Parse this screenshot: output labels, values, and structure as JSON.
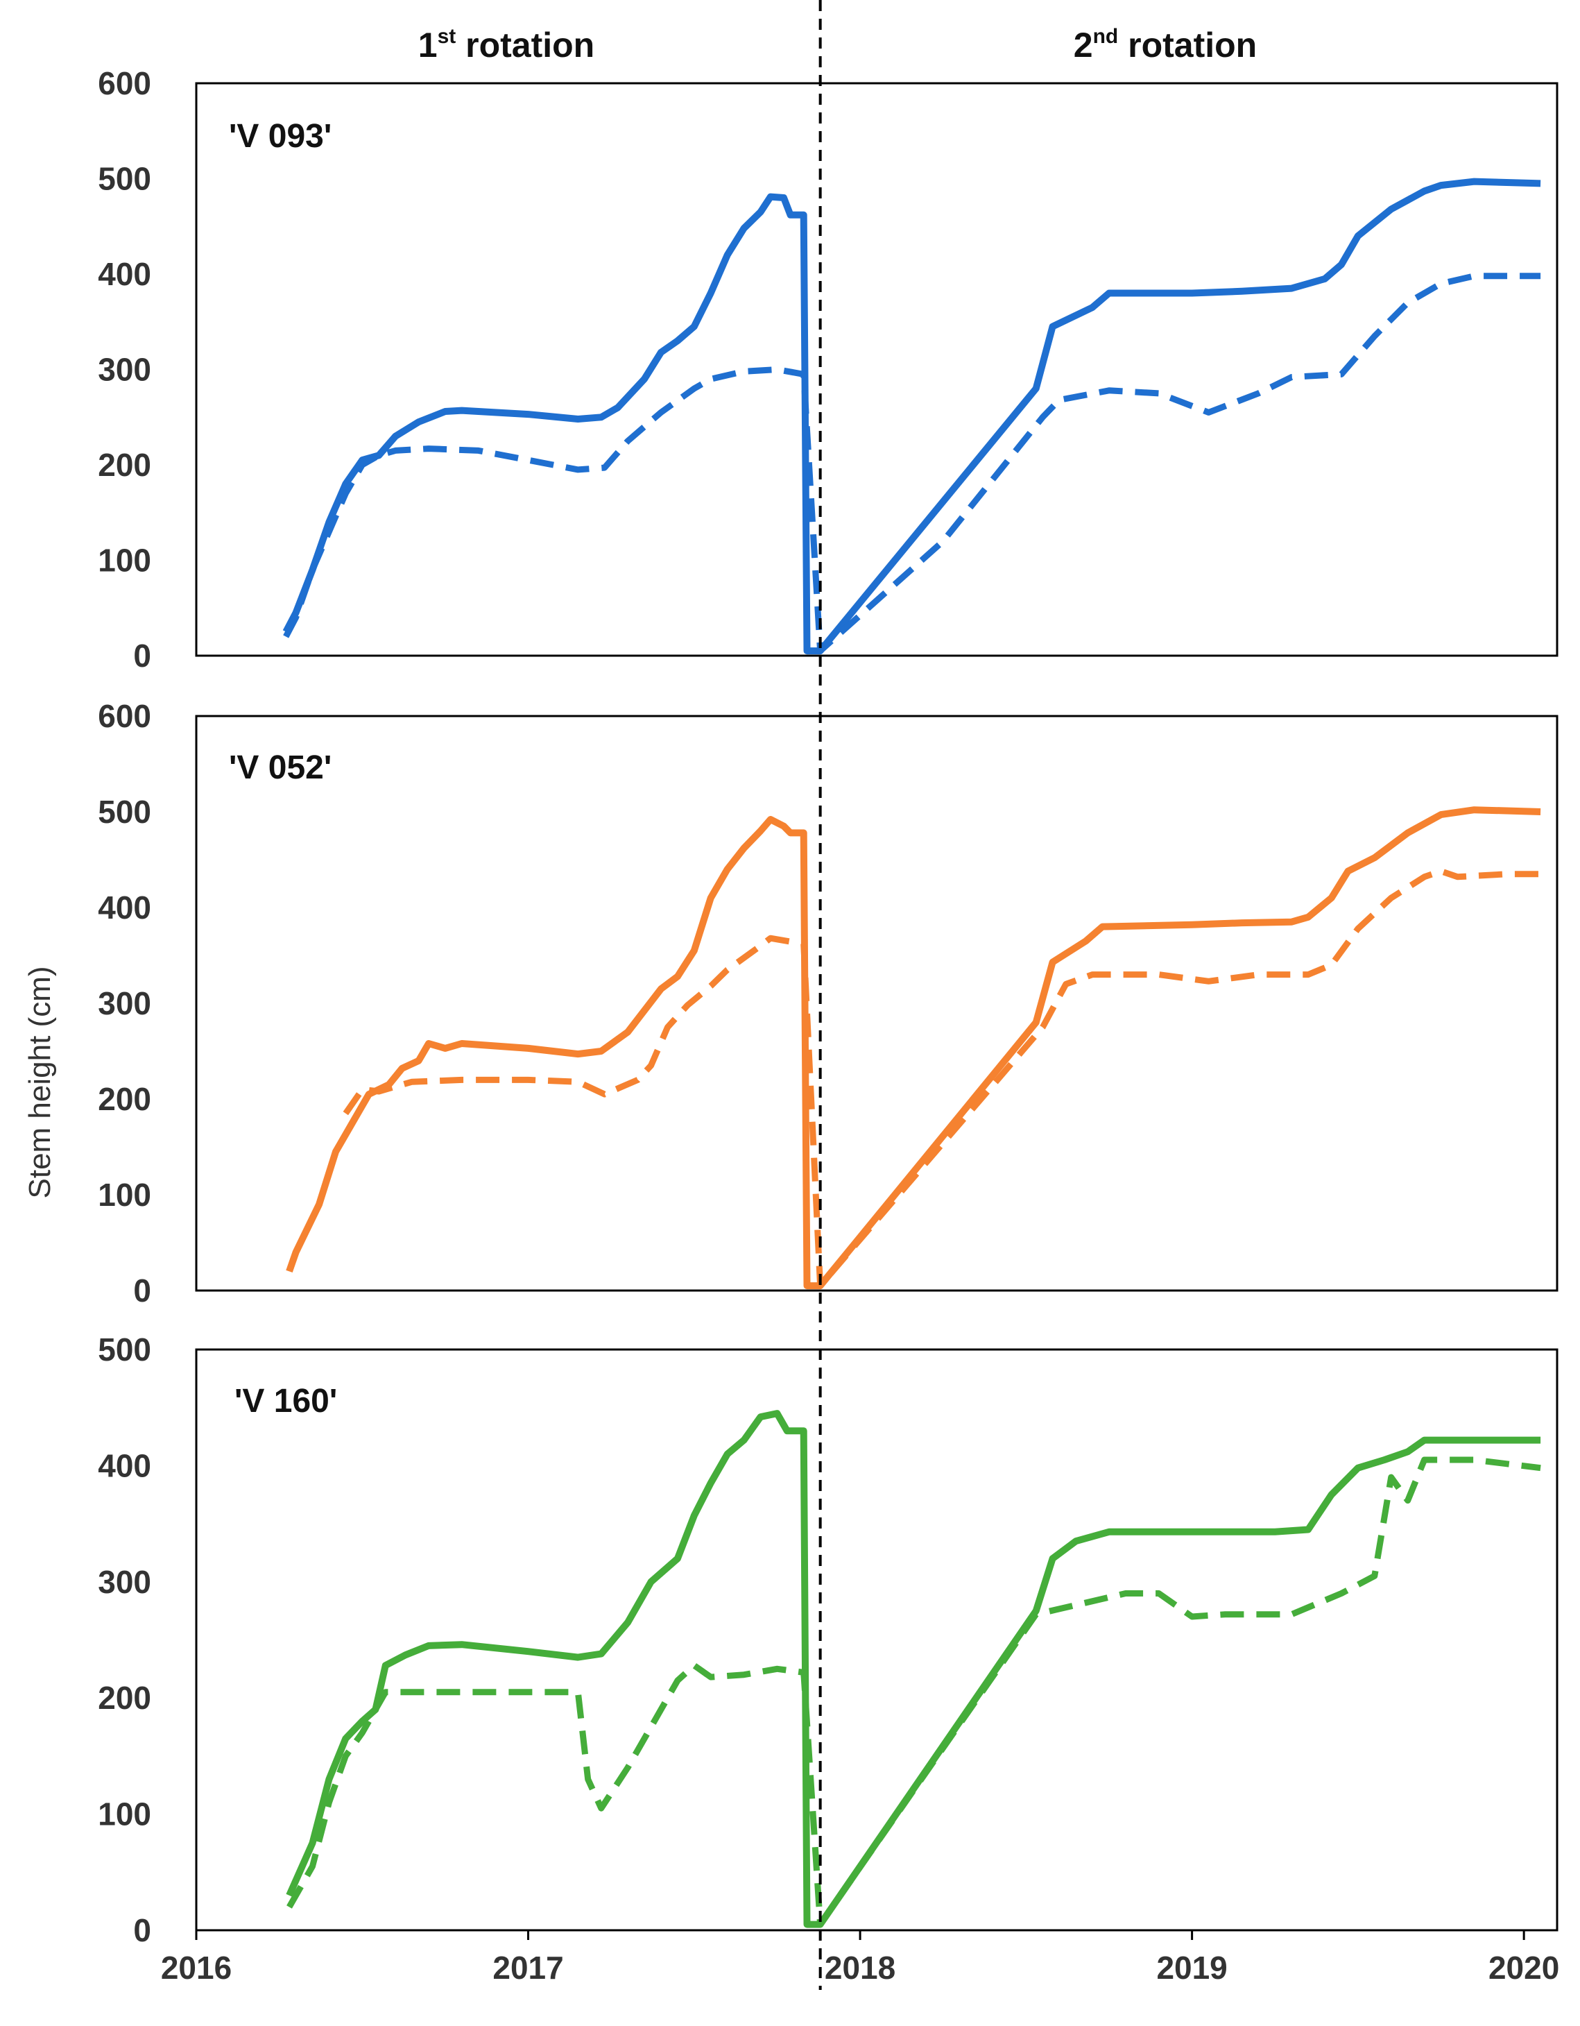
{
  "header": {
    "rotation1": {
      "prefix": "1",
      "sup": "st",
      "suffix": " rotation"
    },
    "rotation2": {
      "prefix": "2",
      "sup": "nd",
      "suffix": " rotation"
    }
  },
  "y_axis_label": "Stem height (cm)",
  "colors": {
    "V 093": "#1f6fd0",
    "V 052": "#f58230",
    "V 160": "#45ad3a",
    "frame": "#000000",
    "divider": "#000000"
  },
  "chart_data": [
    {
      "type": "line",
      "title": "'V 093'",
      "color": "#1f6fd0",
      "xlim": [
        2016,
        2020.1
      ],
      "ylim": [
        0,
        600
      ],
      "yticks": [
        0,
        100,
        200,
        300,
        400,
        500,
        600
      ],
      "series": [
        {
          "name": "solid",
          "style": "solid",
          "points": [
            [
              2016.27,
              25
            ],
            [
              2016.3,
              45
            ],
            [
              2016.35,
              90
            ],
            [
              2016.4,
              140
            ],
            [
              2016.45,
              180
            ],
            [
              2016.5,
              205
            ],
            [
              2016.55,
              210
            ],
            [
              2016.6,
              230
            ],
            [
              2016.67,
              245
            ],
            [
              2016.75,
              256
            ],
            [
              2016.8,
              257
            ],
            [
              2017.0,
              253
            ],
            [
              2017.15,
              248
            ],
            [
              2017.22,
              250
            ],
            [
              2017.27,
              260
            ],
            [
              2017.35,
              290
            ],
            [
              2017.4,
              318
            ],
            [
              2017.45,
              330
            ],
            [
              2017.5,
              345
            ],
            [
              2017.55,
              380
            ],
            [
              2017.6,
              420
            ],
            [
              2017.65,
              448
            ],
            [
              2017.7,
              465
            ],
            [
              2017.73,
              481
            ],
            [
              2017.77,
              480
            ],
            [
              2017.79,
              462
            ],
            [
              2017.83,
              462
            ],
            [
              2017.84,
              5
            ],
            [
              2017.88,
              5
            ],
            [
              2018.53,
              280
            ],
            [
              2018.58,
              345
            ],
            [
              2018.7,
              365
            ],
            [
              2018.75,
              380
            ],
            [
              2019.0,
              380
            ],
            [
              2019.15,
              382
            ],
            [
              2019.3,
              385
            ],
            [
              2019.4,
              395
            ],
            [
              2019.45,
              410
            ],
            [
              2019.5,
              440
            ],
            [
              2019.6,
              468
            ],
            [
              2019.7,
              487
            ],
            [
              2019.75,
              493
            ],
            [
              2019.85,
              497
            ],
            [
              2020.05,
              495
            ]
          ]
        },
        {
          "name": "dashed",
          "style": "dashed",
          "points": [
            [
              2016.27,
              20
            ],
            [
              2016.3,
              40
            ],
            [
              2016.35,
              90
            ],
            [
              2016.4,
              130
            ],
            [
              2016.45,
              170
            ],
            [
              2016.5,
              200
            ],
            [
              2016.55,
              210
            ],
            [
              2016.6,
              215
            ],
            [
              2016.7,
              217
            ],
            [
              2016.85,
              215
            ],
            [
              2017.0,
              205
            ],
            [
              2017.15,
              195
            ],
            [
              2017.23,
              197
            ],
            [
              2017.3,
              225
            ],
            [
              2017.4,
              255
            ],
            [
              2017.5,
              280
            ],
            [
              2017.55,
              290
            ],
            [
              2017.65,
              298
            ],
            [
              2017.75,
              300
            ],
            [
              2017.83,
              295
            ],
            [
              2017.88,
              5
            ],
            [
              2018.25,
              120
            ],
            [
              2018.55,
              250
            ],
            [
              2018.6,
              268
            ],
            [
              2018.75,
              278
            ],
            [
              2018.9,
              275
            ],
            [
              2019.05,
              255
            ],
            [
              2019.2,
              275
            ],
            [
              2019.3,
              292
            ],
            [
              2019.45,
              295
            ],
            [
              2019.55,
              335
            ],
            [
              2019.65,
              370
            ],
            [
              2019.75,
              390
            ],
            [
              2019.85,
              398
            ],
            [
              2020.05,
              398
            ]
          ]
        }
      ]
    },
    {
      "type": "line",
      "title": "'V 052'",
      "color": "#f58230",
      "xlim": [
        2016,
        2020.1
      ],
      "ylim": [
        0,
        600
      ],
      "yticks": [
        0,
        100,
        200,
        300,
        400,
        500,
        600
      ],
      "series": [
        {
          "name": "solid",
          "style": "solid",
          "points": [
            [
              2016.28,
              20
            ],
            [
              2016.3,
              40
            ],
            [
              2016.37,
              90
            ],
            [
              2016.42,
              145
            ],
            [
              2016.47,
              175
            ],
            [
              2016.52,
              205
            ],
            [
              2016.58,
              215
            ],
            [
              2016.62,
              232
            ],
            [
              2016.67,
              240
            ],
            [
              2016.7,
              258
            ],
            [
              2016.75,
              253
            ],
            [
              2016.8,
              258
            ],
            [
              2017.0,
              253
            ],
            [
              2017.15,
              247
            ],
            [
              2017.22,
              250
            ],
            [
              2017.3,
              270
            ],
            [
              2017.4,
              315
            ],
            [
              2017.45,
              328
            ],
            [
              2017.5,
              355
            ],
            [
              2017.55,
              410
            ],
            [
              2017.6,
              440
            ],
            [
              2017.65,
              462
            ],
            [
              2017.7,
              480
            ],
            [
              2017.73,
              492
            ],
            [
              2017.77,
              485
            ],
            [
              2017.79,
              478
            ],
            [
              2017.83,
              478
            ],
            [
              2017.84,
              5
            ],
            [
              2017.88,
              5
            ],
            [
              2018.53,
              280
            ],
            [
              2018.58,
              343
            ],
            [
              2018.68,
              365
            ],
            [
              2018.73,
              380
            ],
            [
              2019.0,
              382
            ],
            [
              2019.15,
              384
            ],
            [
              2019.3,
              385
            ],
            [
              2019.35,
              390
            ],
            [
              2019.42,
              410
            ],
            [
              2019.47,
              438
            ],
            [
              2019.55,
              452
            ],
            [
              2019.65,
              478
            ],
            [
              2019.75,
              497
            ],
            [
              2019.85,
              502
            ],
            [
              2020.05,
              500
            ]
          ]
        },
        {
          "name": "dashed",
          "style": "dashed",
          "points": [
            [
              2016.45,
              185
            ],
            [
              2016.5,
              210
            ],
            [
              2016.55,
              208
            ],
            [
              2016.65,
              218
            ],
            [
              2016.8,
              220
            ],
            [
              2017.0,
              220
            ],
            [
              2017.15,
              218
            ],
            [
              2017.23,
              205
            ],
            [
              2017.33,
              220
            ],
            [
              2017.37,
              235
            ],
            [
              2017.42,
              275
            ],
            [
              2017.48,
              298
            ],
            [
              2017.55,
              318
            ],
            [
              2017.6,
              335
            ],
            [
              2017.7,
              360
            ],
            [
              2017.73,
              368
            ],
            [
              2017.83,
              362
            ],
            [
              2017.88,
              5
            ],
            [
              2018.55,
              275
            ],
            [
              2018.62,
              320
            ],
            [
              2018.7,
              330
            ],
            [
              2018.9,
              330
            ],
            [
              2019.05,
              323
            ],
            [
              2019.2,
              330
            ],
            [
              2019.35,
              330
            ],
            [
              2019.42,
              340
            ],
            [
              2019.5,
              378
            ],
            [
              2019.6,
              410
            ],
            [
              2019.7,
              432
            ],
            [
              2019.75,
              438
            ],
            [
              2019.8,
              432
            ],
            [
              2019.95,
              435
            ],
            [
              2020.05,
              435
            ]
          ]
        }
      ]
    },
    {
      "type": "line",
      "title": "'V 160'",
      "color": "#45ad3a",
      "xlim": [
        2016,
        2020.1
      ],
      "ylim": [
        0,
        500
      ],
      "yticks": [
        0,
        100,
        200,
        300,
        400,
        500
      ],
      "series": [
        {
          "name": "solid",
          "style": "solid",
          "points": [
            [
              2016.28,
              30
            ],
            [
              2016.35,
              75
            ],
            [
              2016.4,
              130
            ],
            [
              2016.45,
              165
            ],
            [
              2016.5,
              180
            ],
            [
              2016.54,
              190
            ],
            [
              2016.57,
              228
            ],
            [
              2016.63,
              237
            ],
            [
              2016.7,
              245
            ],
            [
              2016.8,
              246
            ],
            [
              2017.0,
              240
            ],
            [
              2017.15,
              235
            ],
            [
              2017.22,
              238
            ],
            [
              2017.3,
              265
            ],
            [
              2017.37,
              300
            ],
            [
              2017.45,
              320
            ],
            [
              2017.5,
              357
            ],
            [
              2017.55,
              385
            ],
            [
              2017.6,
              410
            ],
            [
              2017.65,
              422
            ],
            [
              2017.7,
              442
            ],
            [
              2017.75,
              445
            ],
            [
              2017.78,
              430
            ],
            [
              2017.83,
              430
            ],
            [
              2017.84,
              5
            ],
            [
              2017.88,
              5
            ],
            [
              2018.53,
              275
            ],
            [
              2018.58,
              320
            ],
            [
              2018.65,
              335
            ],
            [
              2018.75,
              343
            ],
            [
              2019.0,
              343
            ],
            [
              2019.25,
              343
            ],
            [
              2019.35,
              345
            ],
            [
              2019.42,
              375
            ],
            [
              2019.5,
              398
            ],
            [
              2019.58,
              405
            ],
            [
              2019.65,
              412
            ],
            [
              2019.7,
              422
            ],
            [
              2020.05,
              422
            ]
          ]
        },
        {
          "name": "dashed",
          "style": "dashed",
          "points": [
            [
              2016.28,
              20
            ],
            [
              2016.35,
              55
            ],
            [
              2016.4,
              110
            ],
            [
              2016.45,
              150
            ],
            [
              2016.5,
              170
            ],
            [
              2016.57,
              205
            ],
            [
              2016.65,
              205
            ],
            [
              2016.8,
              205
            ],
            [
              2017.0,
              205
            ],
            [
              2017.15,
              205
            ],
            [
              2017.18,
              130
            ],
            [
              2017.22,
              105
            ],
            [
              2017.3,
              140
            ],
            [
              2017.4,
              190
            ],
            [
              2017.45,
              215
            ],
            [
              2017.5,
              228
            ],
            [
              2017.55,
              218
            ],
            [
              2017.65,
              220
            ],
            [
              2017.75,
              225
            ],
            [
              2017.83,
              222
            ],
            [
              2017.88,
              5
            ],
            [
              2018.53,
              272
            ],
            [
              2018.65,
              280
            ],
            [
              2018.8,
              290
            ],
            [
              2018.9,
              290
            ],
            [
              2019.0,
              270
            ],
            [
              2019.1,
              272
            ],
            [
              2019.3,
              272
            ],
            [
              2019.45,
              290
            ],
            [
              2019.55,
              305
            ],
            [
              2019.6,
              390
            ],
            [
              2019.65,
              370
            ],
            [
              2019.7,
              405
            ],
            [
              2019.85,
              405
            ],
            [
              2020.05,
              398
            ]
          ]
        }
      ]
    }
  ],
  "x_axis": {
    "ticks": [
      2016,
      2017,
      2018,
      2019,
      2020
    ],
    "labels": [
      "2016",
      "2017",
      "2018",
      "2019",
      "2020"
    ]
  },
  "divider_x": 2017.88
}
